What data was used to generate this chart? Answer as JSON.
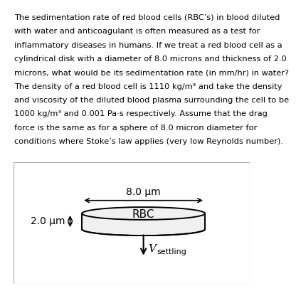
{
  "text_paragraph": "The sedimentation rate of red blood cells (RBC’s) in blood diluted with water and anticoagulant is often measured as a test for inflammatory diseases in humans. If we treat a red blood cell as a cylindrical disk with a diameter of 8.0 microns and thickness of 2.0 microns, what would be its sedimentation rate (in mm/hr) in water? The density of a red blood cell is 1110 kg/m³ and take the density and viscosity of the diluted blood plasma surrounding the cell to be 1000 kg/m³ and 0.001 Pa·s respectively. Assume that the drag force is the same as for a sphere of 8.0 micron diameter for conditions where Stoke’s law applies (very low Reynolds number).",
  "label_diameter": "8.0 μm",
  "label_thickness": "2.0 μm",
  "label_rbc": "RBC",
  "label_v": "V",
  "label_settling": "settling",
  "background_color": "#ffffff",
  "text_color": "#000000",
  "diagram_bg": "#ffffff",
  "cylinder_fill": "#f0f0f0",
  "cylinder_edge": "#000000",
  "font_size_text": 8.2,
  "font_size_labels": 10,
  "font_size_rbc": 11,
  "diagram_box_color": "#aaaaaa",
  "text_lines": [
    "The sedimentation rate of red blood cells (RBC’s) in blood diluted",
    "with water and anticoagulant is often measured as a test for",
    "inflammatory diseases in humans. If we treat a red blood cell as a",
    "cylindrical disk with a diameter of 8.0 microns and thickness of 2.0",
    "microns, what would be its sedimentation rate (in mm/hr) in water?",
    "The density of a red blood cell is 1110 kg/m³ and take the density",
    "and viscosity of the diluted blood plasma surrounding the cell to be",
    "1000 kg/m³ and 0.001 Pa·s respectively. Assume that the drag",
    "force is the same as for a sphere of 8.0 micron diameter for",
    "conditions where Stoke’s law applies (very low Reynolds number)."
  ]
}
